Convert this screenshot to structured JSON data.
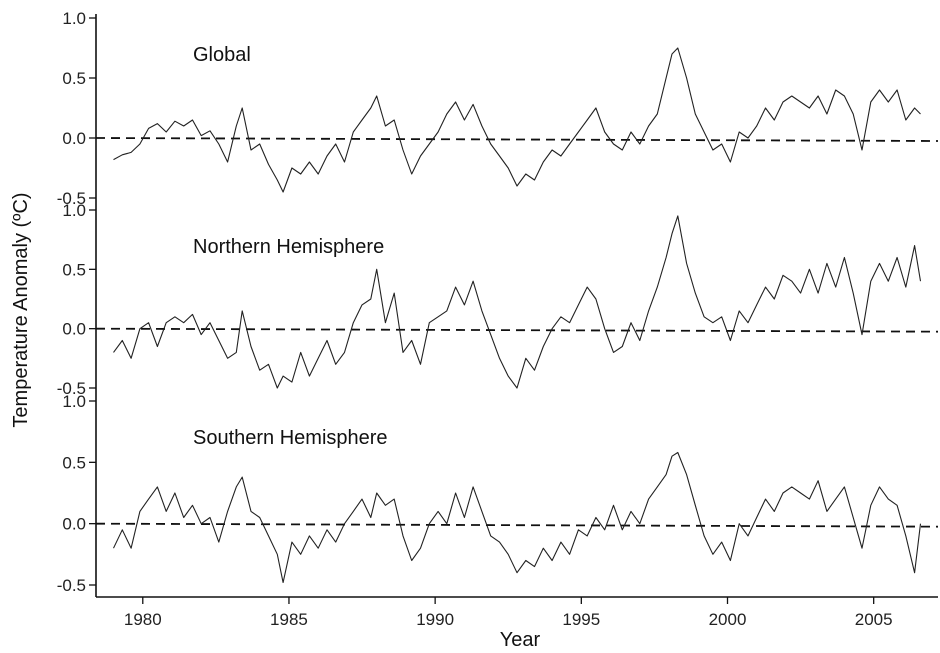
{
  "chart_data": {
    "type": "line",
    "xlabel": "Year",
    "ylabel": "Temperature Anomaly (ºC)",
    "xlim": [
      1978.4,
      2007.2
    ],
    "x_ticks": [
      1980,
      1985,
      1990,
      1995,
      2000,
      2005
    ],
    "x_tick_labels": [
      "1980",
      "1985",
      "1990",
      "1995",
      "2000",
      "2005"
    ],
    "ylim": [
      -0.5,
      1.0
    ],
    "y_ticks": [
      -0.5,
      0.0,
      0.5,
      1.0
    ],
    "y_tick_labels": [
      "-0.5",
      "0.0",
      "0.5",
      "1.0"
    ],
    "reference_line": 0.0,
    "grid": false,
    "panels": [
      {
        "title": "Global",
        "color": "#222222",
        "points": [
          [
            1979.0,
            -0.18
          ],
          [
            1979.3,
            -0.14
          ],
          [
            1979.6,
            -0.12
          ],
          [
            1979.9,
            -0.05
          ],
          [
            1980.2,
            0.08
          ],
          [
            1980.5,
            0.12
          ],
          [
            1980.8,
            0.05
          ],
          [
            1981.1,
            0.14
          ],
          [
            1981.4,
            0.1
          ],
          [
            1981.7,
            0.15
          ],
          [
            1982.0,
            0.02
          ],
          [
            1982.3,
            0.06
          ],
          [
            1982.6,
            -0.05
          ],
          [
            1982.9,
            -0.2
          ],
          [
            1983.2,
            0.1
          ],
          [
            1983.4,
            0.25
          ],
          [
            1983.7,
            -0.1
          ],
          [
            1984.0,
            -0.05
          ],
          [
            1984.3,
            -0.22
          ],
          [
            1984.6,
            -0.35
          ],
          [
            1984.8,
            -0.45
          ],
          [
            1985.1,
            -0.25
          ],
          [
            1985.4,
            -0.3
          ],
          [
            1985.7,
            -0.2
          ],
          [
            1986.0,
            -0.3
          ],
          [
            1986.3,
            -0.15
          ],
          [
            1986.6,
            -0.05
          ],
          [
            1986.9,
            -0.2
          ],
          [
            1987.2,
            0.05
          ],
          [
            1987.5,
            0.15
          ],
          [
            1987.8,
            0.25
          ],
          [
            1988.0,
            0.35
          ],
          [
            1988.3,
            0.1
          ],
          [
            1988.6,
            0.15
          ],
          [
            1988.9,
            -0.1
          ],
          [
            1989.2,
            -0.3
          ],
          [
            1989.5,
            -0.15
          ],
          [
            1989.8,
            -0.05
          ],
          [
            1990.1,
            0.05
          ],
          [
            1990.4,
            0.2
          ],
          [
            1990.7,
            0.3
          ],
          [
            1991.0,
            0.15
          ],
          [
            1991.3,
            0.28
          ],
          [
            1991.6,
            0.1
          ],
          [
            1991.9,
            -0.05
          ],
          [
            1992.2,
            -0.15
          ],
          [
            1992.5,
            -0.25
          ],
          [
            1992.8,
            -0.4
          ],
          [
            1993.1,
            -0.3
          ],
          [
            1993.4,
            -0.35
          ],
          [
            1993.7,
            -0.2
          ],
          [
            1994.0,
            -0.1
          ],
          [
            1994.3,
            -0.15
          ],
          [
            1994.6,
            -0.05
          ],
          [
            1994.9,
            0.05
          ],
          [
            1995.2,
            0.15
          ],
          [
            1995.5,
            0.25
          ],
          [
            1995.8,
            0.05
          ],
          [
            1996.1,
            -0.05
          ],
          [
            1996.4,
            -0.1
          ],
          [
            1996.7,
            0.05
          ],
          [
            1997.0,
            -0.05
          ],
          [
            1997.3,
            0.1
          ],
          [
            1997.6,
            0.2
          ],
          [
            1997.9,
            0.5
          ],
          [
            1998.1,
            0.7
          ],
          [
            1998.3,
            0.75
          ],
          [
            1998.6,
            0.5
          ],
          [
            1998.9,
            0.2
          ],
          [
            1999.2,
            0.05
          ],
          [
            1999.5,
            -0.1
          ],
          [
            1999.8,
            -0.05
          ],
          [
            2000.1,
            -0.2
          ],
          [
            2000.4,
            0.05
          ],
          [
            2000.7,
            0.0
          ],
          [
            2001.0,
            0.1
          ],
          [
            2001.3,
            0.25
          ],
          [
            2001.6,
            0.15
          ],
          [
            2001.9,
            0.3
          ],
          [
            2002.2,
            0.35
          ],
          [
            2002.5,
            0.3
          ],
          [
            2002.8,
            0.25
          ],
          [
            2003.1,
            0.35
          ],
          [
            2003.4,
            0.2
          ],
          [
            2003.7,
            0.4
          ],
          [
            2004.0,
            0.35
          ],
          [
            2004.3,
            0.2
          ],
          [
            2004.6,
            -0.1
          ],
          [
            2004.9,
            0.3
          ],
          [
            2005.2,
            0.4
          ],
          [
            2005.5,
            0.3
          ],
          [
            2005.8,
            0.4
          ],
          [
            2006.1,
            0.15
          ],
          [
            2006.4,
            0.25
          ],
          [
            2006.6,
            0.2
          ]
        ]
      },
      {
        "title": "Northern Hemisphere",
        "color": "#222222",
        "points": [
          [
            1979.0,
            -0.2
          ],
          [
            1979.3,
            -0.1
          ],
          [
            1979.6,
            -0.25
          ],
          [
            1979.9,
            0.0
          ],
          [
            1980.2,
            0.05
          ],
          [
            1980.5,
            -0.15
          ],
          [
            1980.8,
            0.05
          ],
          [
            1981.1,
            0.1
          ],
          [
            1981.4,
            0.05
          ],
          [
            1981.7,
            0.12
          ],
          [
            1982.0,
            -0.05
          ],
          [
            1982.3,
            0.05
          ],
          [
            1982.6,
            -0.1
          ],
          [
            1982.9,
            -0.25
          ],
          [
            1983.2,
            -0.2
          ],
          [
            1983.4,
            0.15
          ],
          [
            1983.7,
            -0.15
          ],
          [
            1984.0,
            -0.35
          ],
          [
            1984.3,
            -0.3
          ],
          [
            1984.6,
            -0.5
          ],
          [
            1984.8,
            -0.4
          ],
          [
            1985.1,
            -0.45
          ],
          [
            1985.4,
            -0.2
          ],
          [
            1985.7,
            -0.4
          ],
          [
            1986.0,
            -0.25
          ],
          [
            1986.3,
            -0.1
          ],
          [
            1986.6,
            -0.3
          ],
          [
            1986.9,
            -0.2
          ],
          [
            1987.2,
            0.05
          ],
          [
            1987.5,
            0.2
          ],
          [
            1987.8,
            0.25
          ],
          [
            1988.0,
            0.5
          ],
          [
            1988.3,
            0.05
          ],
          [
            1988.6,
            0.3
          ],
          [
            1988.9,
            -0.2
          ],
          [
            1989.2,
            -0.1
          ],
          [
            1989.5,
            -0.3
          ],
          [
            1989.8,
            0.05
          ],
          [
            1990.1,
            0.1
          ],
          [
            1990.4,
            0.15
          ],
          [
            1990.7,
            0.35
          ],
          [
            1991.0,
            0.2
          ],
          [
            1991.3,
            0.4
          ],
          [
            1991.6,
            0.15
          ],
          [
            1991.9,
            -0.05
          ],
          [
            1992.2,
            -0.25
          ],
          [
            1992.5,
            -0.4
          ],
          [
            1992.8,
            -0.5
          ],
          [
            1993.1,
            -0.25
          ],
          [
            1993.4,
            -0.35
          ],
          [
            1993.7,
            -0.15
          ],
          [
            1994.0,
            0.0
          ],
          [
            1994.3,
            0.1
          ],
          [
            1994.6,
            0.05
          ],
          [
            1994.9,
            0.2
          ],
          [
            1995.2,
            0.35
          ],
          [
            1995.5,
            0.25
          ],
          [
            1995.8,
            0.0
          ],
          [
            1996.1,
            -0.2
          ],
          [
            1996.4,
            -0.15
          ],
          [
            1996.7,
            0.05
          ],
          [
            1997.0,
            -0.1
          ],
          [
            1997.3,
            0.15
          ],
          [
            1997.6,
            0.35
          ],
          [
            1997.9,
            0.6
          ],
          [
            1998.1,
            0.8
          ],
          [
            1998.3,
            0.95
          ],
          [
            1998.6,
            0.55
          ],
          [
            1998.9,
            0.3
          ],
          [
            1999.2,
            0.1
          ],
          [
            1999.5,
            0.05
          ],
          [
            1999.8,
            0.1
          ],
          [
            2000.1,
            -0.1
          ],
          [
            2000.4,
            0.15
          ],
          [
            2000.7,
            0.05
          ],
          [
            2001.0,
            0.2
          ],
          [
            2001.3,
            0.35
          ],
          [
            2001.6,
            0.25
          ],
          [
            2001.9,
            0.45
          ],
          [
            2002.2,
            0.4
          ],
          [
            2002.5,
            0.3
          ],
          [
            2002.8,
            0.5
          ],
          [
            2003.1,
            0.3
          ],
          [
            2003.4,
            0.55
          ],
          [
            2003.7,
            0.35
          ],
          [
            2004.0,
            0.6
          ],
          [
            2004.3,
            0.3
          ],
          [
            2004.6,
            -0.05
          ],
          [
            2004.9,
            0.4
          ],
          [
            2005.2,
            0.55
          ],
          [
            2005.5,
            0.4
          ],
          [
            2005.8,
            0.6
          ],
          [
            2006.1,
            0.35
          ],
          [
            2006.4,
            0.7
          ],
          [
            2006.6,
            0.4
          ]
        ]
      },
      {
        "title": "Southern Hemisphere",
        "color": "#222222",
        "points": [
          [
            1979.0,
            -0.2
          ],
          [
            1979.3,
            -0.05
          ],
          [
            1979.6,
            -0.2
          ],
          [
            1979.9,
            0.1
          ],
          [
            1980.2,
            0.2
          ],
          [
            1980.5,
            0.3
          ],
          [
            1980.8,
            0.1
          ],
          [
            1981.1,
            0.25
          ],
          [
            1981.4,
            0.05
          ],
          [
            1981.7,
            0.15
          ],
          [
            1982.0,
            0.0
          ],
          [
            1982.3,
            0.05
          ],
          [
            1982.6,
            -0.15
          ],
          [
            1982.9,
            0.1
          ],
          [
            1983.2,
            0.3
          ],
          [
            1983.4,
            0.38
          ],
          [
            1983.7,
            0.1
          ],
          [
            1984.0,
            0.05
          ],
          [
            1984.3,
            -0.1
          ],
          [
            1984.6,
            -0.25
          ],
          [
            1984.8,
            -0.48
          ],
          [
            1985.1,
            -0.15
          ],
          [
            1985.4,
            -0.25
          ],
          [
            1985.7,
            -0.1
          ],
          [
            1986.0,
            -0.2
          ],
          [
            1986.3,
            -0.05
          ],
          [
            1986.6,
            -0.15
          ],
          [
            1986.9,
            0.0
          ],
          [
            1987.2,
            0.1
          ],
          [
            1987.5,
            0.2
          ],
          [
            1987.8,
            0.05
          ],
          [
            1988.0,
            0.25
          ],
          [
            1988.3,
            0.15
          ],
          [
            1988.6,
            0.2
          ],
          [
            1988.9,
            -0.1
          ],
          [
            1989.2,
            -0.3
          ],
          [
            1989.5,
            -0.2
          ],
          [
            1989.8,
            0.0
          ],
          [
            1990.1,
            0.1
          ],
          [
            1990.4,
            0.0
          ],
          [
            1990.7,
            0.25
          ],
          [
            1991.0,
            0.05
          ],
          [
            1991.3,
            0.3
          ],
          [
            1991.6,
            0.1
          ],
          [
            1991.9,
            -0.1
          ],
          [
            1992.2,
            -0.15
          ],
          [
            1992.5,
            -0.25
          ],
          [
            1992.8,
            -0.4
          ],
          [
            1993.1,
            -0.3
          ],
          [
            1993.4,
            -0.35
          ],
          [
            1993.7,
            -0.2
          ],
          [
            1994.0,
            -0.3
          ],
          [
            1994.3,
            -0.15
          ],
          [
            1994.6,
            -0.25
          ],
          [
            1994.9,
            -0.05
          ],
          [
            1995.2,
            -0.1
          ],
          [
            1995.5,
            0.05
          ],
          [
            1995.8,
            -0.05
          ],
          [
            1996.1,
            0.15
          ],
          [
            1996.4,
            -0.05
          ],
          [
            1996.7,
            0.1
          ],
          [
            1997.0,
            0.0
          ],
          [
            1997.3,
            0.2
          ],
          [
            1997.6,
            0.3
          ],
          [
            1997.9,
            0.4
          ],
          [
            1998.1,
            0.55
          ],
          [
            1998.3,
            0.58
          ],
          [
            1998.6,
            0.4
          ],
          [
            1998.9,
            0.15
          ],
          [
            1999.2,
            -0.1
          ],
          [
            1999.5,
            -0.25
          ],
          [
            1999.8,
            -0.15
          ],
          [
            2000.1,
            -0.3
          ],
          [
            2000.4,
            0.0
          ],
          [
            2000.7,
            -0.1
          ],
          [
            2001.0,
            0.05
          ],
          [
            2001.3,
            0.2
          ],
          [
            2001.6,
            0.1
          ],
          [
            2001.9,
            0.25
          ],
          [
            2002.2,
            0.3
          ],
          [
            2002.5,
            0.25
          ],
          [
            2002.8,
            0.2
          ],
          [
            2003.1,
            0.35
          ],
          [
            2003.4,
            0.1
          ],
          [
            2003.7,
            0.2
          ],
          [
            2004.0,
            0.3
          ],
          [
            2004.3,
            0.05
          ],
          [
            2004.6,
            -0.2
          ],
          [
            2004.9,
            0.15
          ],
          [
            2005.2,
            0.3
          ],
          [
            2005.5,
            0.2
          ],
          [
            2005.8,
            0.15
          ],
          [
            2006.1,
            -0.1
          ],
          [
            2006.4,
            -0.4
          ],
          [
            2006.6,
            0.0
          ]
        ]
      }
    ]
  }
}
